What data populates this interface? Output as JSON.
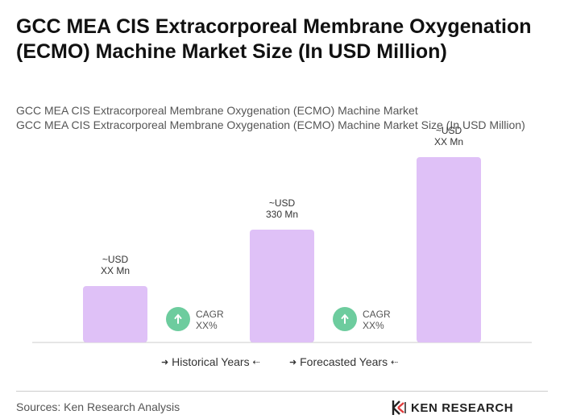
{
  "title": "GCC MEA CIS Extracorporeal Membrane Oxygenation (ECMO) Machine Market Size (In USD Million)",
  "subtitle_1": "GCC MEA CIS Extracorporeal Membrane Oxygenation (ECMO) Machine Market",
  "subtitle_2": "GCC MEA CIS Extracorporeal Membrane Oxygenation (ECMO) Machine Market Size (In USD Million)",
  "colors": {
    "bar": "#dfc1f7",
    "cagr_circle": "#6dcc9e",
    "axis": "#cccccc",
    "label": "#333333",
    "brand_red": "#e03c3c"
  },
  "chart_data": {
    "type": "bar",
    "categories": [
      "",
      "",
      ""
    ],
    "values": [
      70,
      140,
      230
    ],
    "value_scale_note": "",
    "bar_labels": [
      [
        "~USD",
        "XX Mn"
      ],
      [
        "~USD",
        "330 Mn"
      ],
      [
        "~USD",
        "XX Mn"
      ]
    ],
    "cagr_badges": [
      [
        "CAGR",
        "XX%"
      ],
      [
        "CAGR",
        "XX%"
      ]
    ],
    "ylim": [
      0,
      230
    ],
    "grid": false,
    "legend_position": "bottom"
  },
  "legend": {
    "historical": "Historical Years",
    "forecast": "Forecasted Years"
  },
  "footer": {
    "source": "Sources: Ken Research Analysis",
    "brand": "KEN RESEARCH"
  }
}
